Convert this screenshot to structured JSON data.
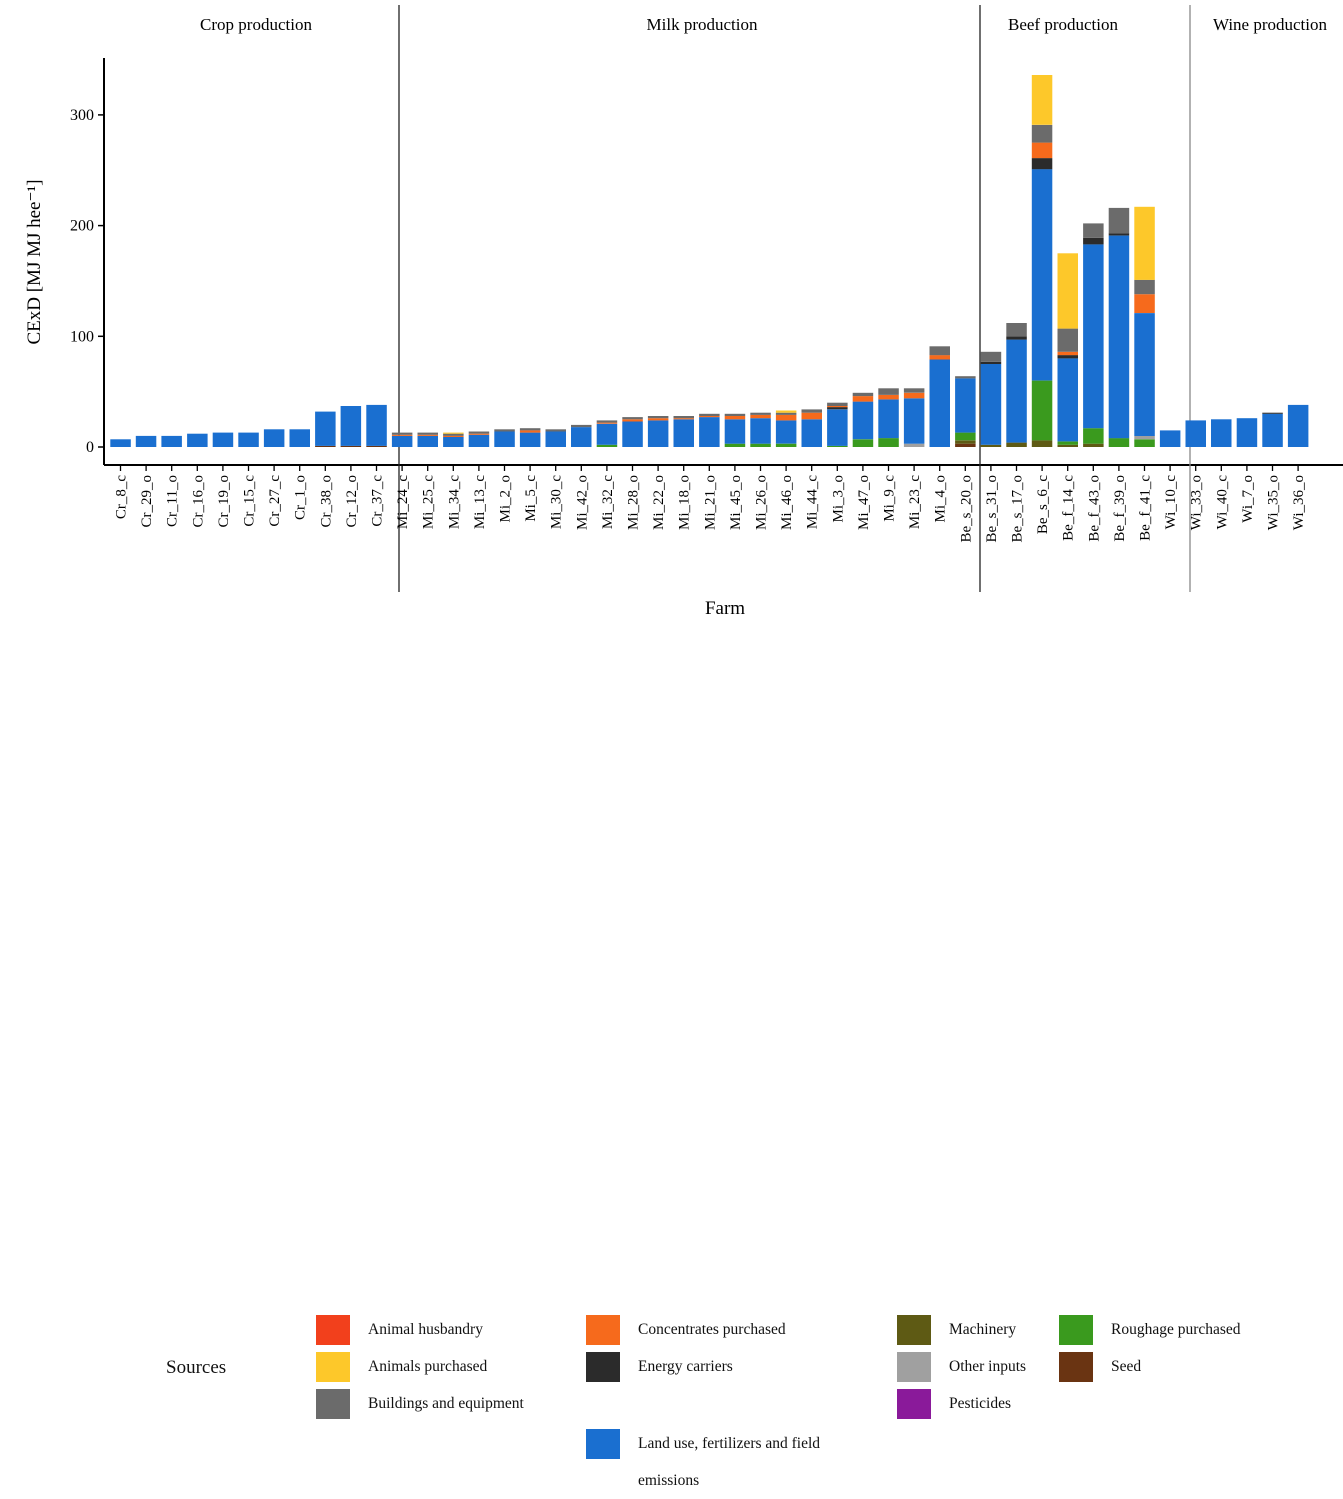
{
  "chart_data": {
    "type": "bar",
    "stacked": true,
    "ylabel": "CExD [MJ MJ hee⁻¹]",
    "xlabel": "Farm",
    "ylim": [
      -8,
      355
    ],
    "yticks": [
      0,
      100,
      200,
      300
    ],
    "panels": [
      {
        "title": "Crop production",
        "categories": [
          "Cr_8_c",
          "Cr_29_o",
          "Cr_11_o",
          "Cr_16_o",
          "Cr_19_o",
          "Cr_15_c",
          "Cr_27_c",
          "Cr_1_o",
          "Cr_38_o",
          "Cr_12_o",
          "Cr_37_c"
        ]
      },
      {
        "title": "Milk production",
        "categories": [
          "Mi_24_c",
          "Mi_25_c",
          "Mi_34_c",
          "Mi_13_c",
          "Mi_2_o",
          "Mi_5_c",
          "Mi_30_c",
          "Mi_42_o",
          "Mi_32_c",
          "Mi_28_o",
          "Mi_22_o",
          "Mi_18_o",
          "Mi_21_o",
          "Mi_45_o",
          "Mi_26_o",
          "Mi_46_o",
          "Mi_44_c",
          "Mi_3_o",
          "Mi_47_o",
          "Mi_9_c",
          "Mi_23_c",
          "Mi_4_o"
        ]
      },
      {
        "title": "Beef production",
        "categories": [
          "Be_s_20_o",
          "Be_s_31_o",
          "Be_s_17_o",
          "Be_s_6_c",
          "Be_f_14_c",
          "Be_f_43_o",
          "Be_f_39_o",
          "Be_f_41_c"
        ]
      },
      {
        "title": "Wine production",
        "categories": [
          "Wi_10_c",
          "Wi_33_o",
          "Wi_40_c",
          "Wi_7_o",
          "Wi_35_o",
          "Wi_36_o"
        ]
      }
    ],
    "sources": [
      {
        "name": "Animal husbandry",
        "color": "#f2401c"
      },
      {
        "name": "Animals purchased",
        "color": "#fdc82a"
      },
      {
        "name": "Buildings and equipment",
        "color": "#6b6b6b"
      },
      {
        "name": "Concentrates purchased",
        "color": "#f66a1c"
      },
      {
        "name": "Energy carriers",
        "color": "#2b2b2b"
      },
      {
        "name": "Land use, fertilizers and field emissions",
        "color": "#1a6fd0"
      },
      {
        "name": "Machinery",
        "color": "#5e5a14"
      },
      {
        "name": "Other inputs",
        "color": "#a0a0a0"
      },
      {
        "name": "Pesticides",
        "color": "#8a1a9a"
      },
      {
        "name": "Roughage purchased",
        "color": "#3a9a1e"
      },
      {
        "name": "Seed",
        "color": "#6a3412"
      }
    ],
    "series_order": [
      "Seed",
      "Machinery",
      "Roughage purchased",
      "Other inputs",
      "Land use, fertilizers and field emissions",
      "Energy carriers",
      "Animal husbandry",
      "Concentrates purchased",
      "Buildings and equipment",
      "Animals purchased"
    ],
    "values": {
      "Cr_8_c": {
        "Land use, fertilizers and field emissions": 7
      },
      "Cr_29_o": {
        "Land use, fertilizers and field emissions": 10
      },
      "Cr_11_o": {
        "Land use, fertilizers and field emissions": 10
      },
      "Cr_16_o": {
        "Land use, fertilizers and field emissions": 12
      },
      "Cr_19_o": {
        "Land use, fertilizers and field emissions": 13
      },
      "Cr_15_c": {
        "Land use, fertilizers and field emissions": 13
      },
      "Cr_27_c": {
        "Land use, fertilizers and field emissions": 16
      },
      "Cr_1_o": {
        "Land use, fertilizers and field emissions": 16
      },
      "Cr_38_o": {
        "Seed": 1,
        "Land use, fertilizers and field emissions": 31
      },
      "Cr_12_o": {
        "Seed": 1,
        "Land use, fertilizers and field emissions": 36
      },
      "Cr_37_c": {
        "Seed": 1,
        "Land use, fertilizers and field emissions": 37
      },
      "Mi_24_c": {
        "Land use, fertilizers and field emissions": 10,
        "Concentrates purchased": 1,
        "Buildings and equipment": 2
      },
      "Mi_25_c": {
        "Land use, fertilizers and field emissions": 10,
        "Concentrates purchased": 1,
        "Buildings and equipment": 2
      },
      "Mi_34_c": {
        "Land use, fertilizers and field emissions": 9,
        "Concentrates purchased": 1,
        "Animals purchased": 1,
        "Buildings and equipment": 2
      },
      "Mi_13_c": {
        "Land use, fertilizers and field emissions": 11,
        "Concentrates purchased": 1,
        "Buildings and equipment": 2
      },
      "Mi_2_o": {
        "Land use, fertilizers and field emissions": 14,
        "Buildings and equipment": 2
      },
      "Mi_5_c": {
        "Land use, fertilizers and field emissions": 13,
        "Concentrates purchased": 2,
        "Buildings and equipment": 2
      },
      "Mi_30_c": {
        "Land use, fertilizers and field emissions": 14,
        "Buildings and equipment": 2
      },
      "Mi_42_o": {
        "Land use, fertilizers and field emissions": 18,
        "Buildings and equipment": 2
      },
      "Mi_32_c": {
        "Roughage purchased": 2,
        "Land use, fertilizers and field emissions": 19,
        "Concentrates purchased": 1,
        "Buildings and equipment": 2
      },
      "Mi_28_o": {
        "Land use, fertilizers and field emissions": 23,
        "Concentrates purchased": 2,
        "Buildings and equipment": 2
      },
      "Mi_22_o": {
        "Land use, fertilizers and field emissions": 24,
        "Concentrates purchased": 2,
        "Buildings and equipment": 2
      },
      "Mi_18_o": {
        "Land use, fertilizers and field emissions": 25,
        "Concentrates purchased": 1,
        "Buildings and equipment": 2
      },
      "Mi_21_o": {
        "Land use, fertilizers and field emissions": 27,
        "Concentrates purchased": 1,
        "Buildings and equipment": 2
      },
      "Mi_45_o": {
        "Roughage purchased": 3,
        "Land use, fertilizers and field emissions": 22,
        "Concentrates purchased": 3,
        "Buildings and equipment": 2
      },
      "Mi_26_o": {
        "Roughage purchased": 3,
        "Land use, fertilizers and field emissions": 23,
        "Concentrates purchased": 3,
        "Buildings and equipment": 2
      },
      "Mi_46_o": {
        "Roughage purchased": 3,
        "Land use, fertilizers and field emissions": 21,
        "Concentrates purchased": 5,
        "Animals purchased": 2,
        "Buildings and equipment": 2
      },
      "Mi_44_c": {
        "Land use, fertilizers and field emissions": 25,
        "Concentrates purchased": 6,
        "Buildings and equipment": 3
      },
      "Mi_3_o": {
        "Roughage purchased": 1,
        "Land use, fertilizers and field emissions": 33,
        "Energy carriers": 2,
        "Concentrates purchased": 1,
        "Buildings and equipment": 3
      },
      "Mi_47_o": {
        "Roughage purchased": 7,
        "Land use, fertilizers and field emissions": 34,
        "Concentrates purchased": 5,
        "Buildings and equipment": 3
      },
      "Mi_9_c": {
        "Roughage purchased": 8,
        "Land use, fertilizers and field emissions": 35,
        "Concentrates purchased": 4,
        "Buildings and equipment": 6
      },
      "Mi_23_c": {
        "Other inputs": 3,
        "Land use, fertilizers and field emissions": 41,
        "Concentrates purchased": 5,
        "Buildings and equipment": 4
      },
      "Mi_4_o": {
        "Land use, fertilizers and field emissions": 79,
        "Concentrates purchased": 4,
        "Buildings and equipment": 8
      },
      "Be_s_20_o": {
        "Seed": 3,
        "Machinery": 3,
        "Roughage purchased": 7,
        "Land use, fertilizers and field emissions": 49,
        "Buildings and equipment": 2
      },
      "Be_s_31_o": {
        "Machinery": 2,
        "Land use, fertilizers and field emissions": 73,
        "Energy carriers": 2,
        "Buildings and equipment": 9
      },
      "Be_s_17_o": {
        "Machinery": 4,
        "Land use, fertilizers and field emissions": 93,
        "Energy carriers": 3,
        "Buildings and equipment": 12
      },
      "Be_s_6_c": {
        "Machinery": 6,
        "Roughage purchased": 54,
        "Land use, fertilizers and field emissions": 191,
        "Energy carriers": 10,
        "Concentrates purchased": 14,
        "Buildings and equipment": 16,
        "Animals purchased": 45
      },
      "Be_f_14_c": {
        "Machinery": 2,
        "Roughage purchased": 3,
        "Land use, fertilizers and field emissions": 75,
        "Energy carriers": 3,
        "Concentrates purchased": 3,
        "Buildings and equipment": 21,
        "Animals purchased": 68
      },
      "Be_f_43_o": {
        "Machinery": 3,
        "Roughage purchased": 14,
        "Land use, fertilizers and field emissions": 166,
        "Energy carriers": 6,
        "Buildings and equipment": 13
      },
      "Be_f_39_o": {
        "Roughage purchased": 8,
        "Land use, fertilizers and field emissions": 183,
        "Energy carriers": 2,
        "Buildings and equipment": 23
      },
      "Be_f_41_c": {
        "Roughage purchased": 7,
        "Other inputs": 3,
        "Land use, fertilizers and field emissions": 111,
        "Concentrates purchased": 17,
        "Buildings and equipment": 13,
        "Animals purchased": 66
      },
      "Wi_10_c": {
        "Land use, fertilizers and field emissions": 15
      },
      "Wi_33_o": {
        "Land use, fertilizers and field emissions": 24
      },
      "Wi_40_c": {
        "Land use, fertilizers and field emissions": 25
      },
      "Wi_7_o": {
        "Land use, fertilizers and field emissions": 26
      },
      "Wi_35_o": {
        "Land use, fertilizers and field emissions": 30,
        "Energy carriers": 1
      },
      "Wi_36_o": {
        "Land use, fertilizers and field emissions": 38
      }
    }
  },
  "legend": {
    "title": "Sources",
    "items": [
      {
        "label": "Animal husbandry",
        "color": "#f2401c"
      },
      {
        "label": "Animals purchased",
        "color": "#fdc82a"
      },
      {
        "label": "Buildings and equipment",
        "color": "#6b6b6b"
      },
      {
        "label": "Concentrates purchased",
        "color": "#f66a1c"
      },
      {
        "label": "Energy carriers",
        "color": "#2b2b2b"
      },
      {
        "label": "Land use, fertilizers and field emissions",
        "color": "#1a6fd0"
      },
      {
        "label": "Machinery",
        "color": "#5e5a14"
      },
      {
        "label": "Other inputs",
        "color": "#a0a0a0"
      },
      {
        "label": "Pesticides",
        "color": "#8a1a9a"
      },
      {
        "label": "Roughage purchased",
        "color": "#3a9a1e"
      },
      {
        "label": "Seed",
        "color": "#6a3412"
      }
    ]
  }
}
